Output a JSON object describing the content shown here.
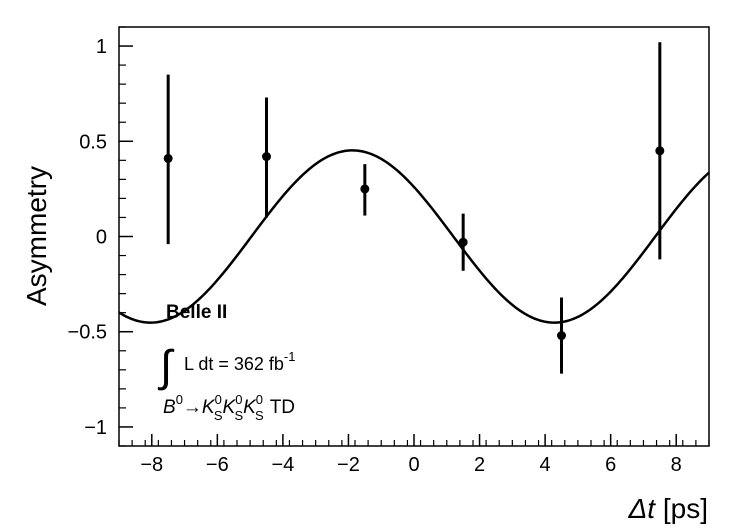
{
  "chart_data": {
    "type": "scatter",
    "xlabel": "Δt [ps]",
    "xlabel_var": "Δt",
    "xlabel_unit": "[ps]",
    "ylabel": "Asymmetry",
    "xlim": [
      -9,
      9
    ],
    "ylim": [
      -1.1,
      1.1
    ],
    "grid": false,
    "x_ticks": [
      -8,
      -6,
      -4,
      -2,
      0,
      2,
      4,
      6,
      8
    ],
    "x_tick_labels": [
      "−8",
      "−6",
      "−4",
      "−2",
      "0",
      "2",
      "4",
      "6",
      "8"
    ],
    "y_ticks": [
      -1,
      -0.5,
      0,
      0.5,
      1
    ],
    "y_tick_labels": [
      "−1",
      "−0.5",
      "0",
      "0.5",
      "1"
    ],
    "points": [
      {
        "x": -7.5,
        "y": 0.41,
        "yerr_low": 0.45,
        "yerr_high": 0.44
      },
      {
        "x": -4.5,
        "y": 0.42,
        "yerr_low": 0.32,
        "yerr_high": 0.31
      },
      {
        "x": -1.5,
        "y": 0.25,
        "yerr_low": 0.14,
        "yerr_high": 0.13
      },
      {
        "x": 1.5,
        "y": -0.03,
        "yerr_low": 0.15,
        "yerr_high": 0.15
      },
      {
        "x": 4.5,
        "y": -0.52,
        "yerr_low": 0.2,
        "yerr_high": 0.2
      },
      {
        "x": 7.5,
        "y": 0.45,
        "yerr_low": 0.57,
        "yerr_high": 0.57
      }
    ],
    "curve": {
      "form": "S*sin(dm*t) + C*cos(dm*t)",
      "S": -0.37,
      "C": 0.26,
      "dm": 0.51
    },
    "annotations": {
      "experiment": "Belle II",
      "luminosity_text": "L dt = 362 fb",
      "luminosity_exp": "-1",
      "process": {
        "B": "B",
        "B_sup": "0",
        "arrow": "→",
        "K": "K",
        "K_sup": "0",
        "K_sub": "S",
        "suffix": "TD"
      }
    }
  }
}
